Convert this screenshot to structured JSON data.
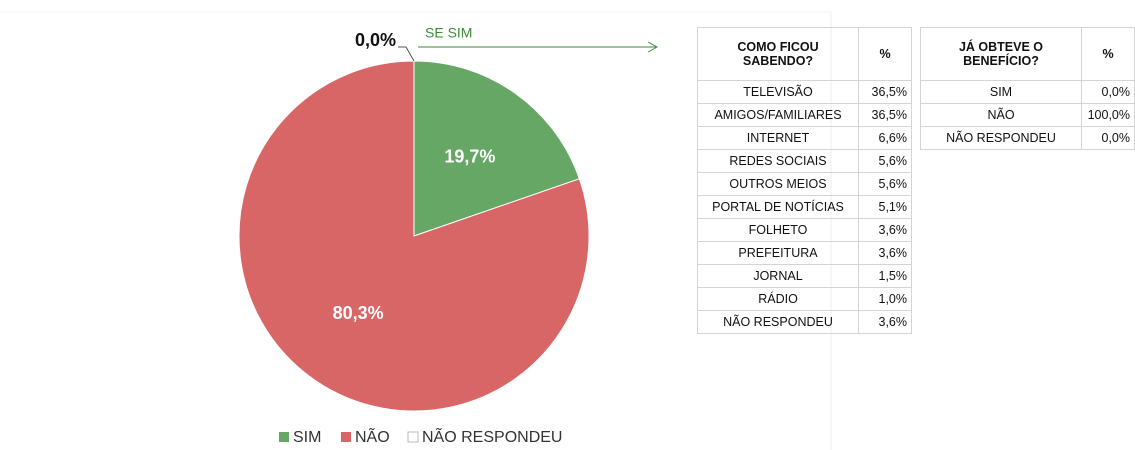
{
  "chart_data": {
    "type": "pie",
    "categories": [
      "SIM",
      "NÃO",
      "NÃO RESPONDEU"
    ],
    "values": [
      19.7,
      80.3,
      0
    ],
    "value_labels": [
      "19,7%",
      "80,3%",
      "0,0%"
    ],
    "colors": [
      "#66a766",
      "#d96666",
      "#ffffff"
    ],
    "annotation": "SE SIM",
    "legend": "bottom"
  },
  "tables": [
    {
      "header": [
        "COMO FICOU SABENDO?",
        "%"
      ],
      "rows": [
        [
          "TELEVISÃO",
          "36,5%"
        ],
        [
          "AMIGOS/FAMILIARES",
          "36,5%"
        ],
        [
          "INTERNET",
          "6,6%"
        ],
        [
          "REDES SOCIAIS",
          "5,6%"
        ],
        [
          "OUTROS MEIOS",
          "5,6%"
        ],
        [
          "PORTAL DE NOTÍCIAS",
          "5,1%"
        ],
        [
          "FOLHETO",
          "3,6%"
        ],
        [
          "PREFEITURA",
          "3,6%"
        ],
        [
          "JORNAL",
          "1,5%"
        ],
        [
          "RÁDIO",
          "1,0%"
        ],
        [
          "NÃO RESPONDEU",
          "3,6%"
        ]
      ]
    },
    {
      "header": [
        "JÁ OBTEVE O BENEFÍCIO?",
        "%"
      ],
      "rows": [
        [
          "SIM",
          "0,0%"
        ],
        [
          "NÃO",
          "100,0%"
        ],
        [
          "NÃO RESPONDEU",
          "0,0%"
        ]
      ]
    }
  ]
}
